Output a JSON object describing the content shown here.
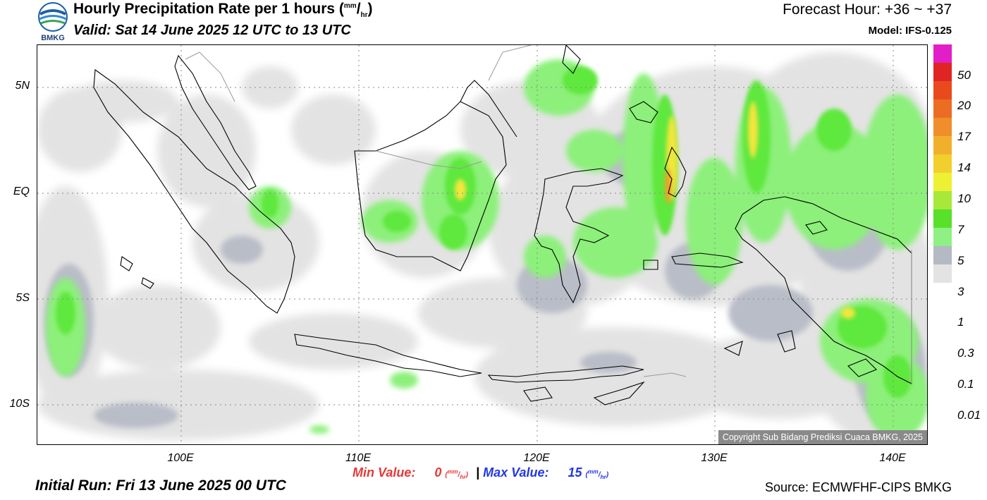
{
  "header": {
    "title_prefix": "Hourly Precipitation Rate per 1 hours (",
    "title_unit_num": "mm",
    "title_unit_sep": "/",
    "title_unit_den": "hr",
    "title_suffix": ")",
    "valid": "Valid: Sat 14 June 2025 12 UTC to 13 UTC",
    "forecast_hour": "Forecast Hour: +36 ~ +37",
    "model": "Model: IFS-0.125",
    "logo_text": "BMKG"
  },
  "map": {
    "lat_labels": [
      "5N",
      "EQ",
      "5S",
      "10S"
    ],
    "lon_labels": [
      "100E",
      "110E",
      "120E",
      "130E",
      "140E"
    ],
    "copyright": "Copyright Sub Bidang Prediksi Cuaca BMKG, 2025",
    "colors": {
      "grey_light": "#e3e3e3",
      "grey": "#b9bdc7",
      "green_light": "#8cf07a",
      "green": "#5ee83d",
      "yellow": "#f2e63c",
      "orange": "#f0a028",
      "red": "#e83020"
    }
  },
  "colorbar": {
    "labels": [
      "50",
      "20",
      "17",
      "14",
      "10",
      "7",
      "5",
      "3",
      "1",
      "0.3",
      "0.1",
      "0.01"
    ],
    "colors": [
      "#e21fc6",
      "#e02424",
      "#e84a1e",
      "#ec6c24",
      "#ef8e2a",
      "#f1b02c",
      "#f2cf2c",
      "#eef034",
      "#a8e83a",
      "#58e02a",
      "#8ff086",
      "#b4b9c3",
      "#e3e3e3"
    ]
  },
  "footer": {
    "min_label": "Min Value:",
    "min_value": "0",
    "max_label": "Max Value:",
    "max_value": "15",
    "separator": "|",
    "unit_num": "mm",
    "unit_den": "hr",
    "initial_run": "Initial Run: Fri 13 June 2025 00 UTC",
    "source": "Source: ECMWFHF-CIPS BMKG"
  }
}
